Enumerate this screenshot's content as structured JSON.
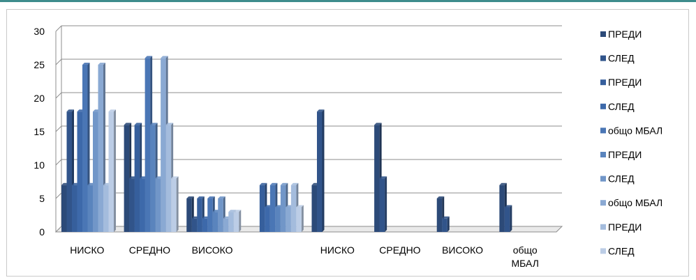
{
  "chart_data": {
    "type": "bar",
    "title": "",
    "xlabel": "",
    "ylabel": "",
    "ylim": [
      0,
      30
    ],
    "yticks": [
      "0",
      "5",
      "10",
      "15",
      "20",
      "25",
      "30"
    ],
    "grid": true,
    "legend_position": "right",
    "categories": [
      "НИСКО",
      "СРЕДНО",
      "ВИСОКО",
      "",
      "НИСКО",
      "СРЕДНО",
      "ВИСОКО",
      "общо МБАЛ"
    ],
    "category_lines": [
      [
        "НИСКО"
      ],
      [
        "СРЕДНО"
      ],
      [
        "ВИСОКО"
      ],
      [
        ""
      ],
      [
        "НИСКО"
      ],
      [
        "СРЕДНО"
      ],
      [
        "ВИСОКО"
      ],
      [
        "общо",
        "МБАЛ"
      ]
    ],
    "series": [
      {
        "name": "ПРЕДИ",
        "color": "#2c4a78",
        "values": [
          7,
          16,
          5,
          0,
          7,
          16,
          5,
          7
        ]
      },
      {
        "name": "СЛЕД",
        "color": "#31548a",
        "values": [
          18,
          8,
          2,
          0,
          18,
          8,
          2,
          3.7
        ]
      },
      {
        "name": "ПРЕДИ",
        "color": "#365f9c",
        "values": [
          7,
          16,
          5,
          7,
          0,
          0,
          0,
          0
        ]
      },
      {
        "name": "СЛЕД",
        "color": "#3d69aa",
        "values": [
          18,
          8,
          2,
          3.7,
          0,
          0,
          0,
          0
        ]
      },
      {
        "name": "общо МБАЛ",
        "color": "#4a76b5",
        "values": [
          25,
          26,
          5,
          7,
          0,
          0,
          0,
          0
        ]
      },
      {
        "name": "ПРЕДИ",
        "color": "#5a84bd",
        "values": [
          7,
          16,
          3,
          3.7,
          0,
          0,
          0,
          0
        ]
      },
      {
        "name": "СЛЕД",
        "color": "#7196c8",
        "values": [
          18,
          8,
          5,
          7,
          0,
          0,
          0,
          0
        ]
      },
      {
        "name": "общо МБАЛ",
        "color": "#8aa9d3",
        "values": [
          25,
          26,
          2,
          3.7,
          0,
          0,
          0,
          0
        ]
      },
      {
        "name": "ПРЕДИ",
        "color": "#a4bcdd",
        "values": [
          7,
          16,
          3,
          7,
          0,
          0,
          0,
          0
        ]
      },
      {
        "name": "СЛЕД",
        "color": "#bccde6",
        "values": [
          18,
          8,
          3,
          3.7,
          0,
          0,
          0,
          0
        ]
      }
    ]
  }
}
